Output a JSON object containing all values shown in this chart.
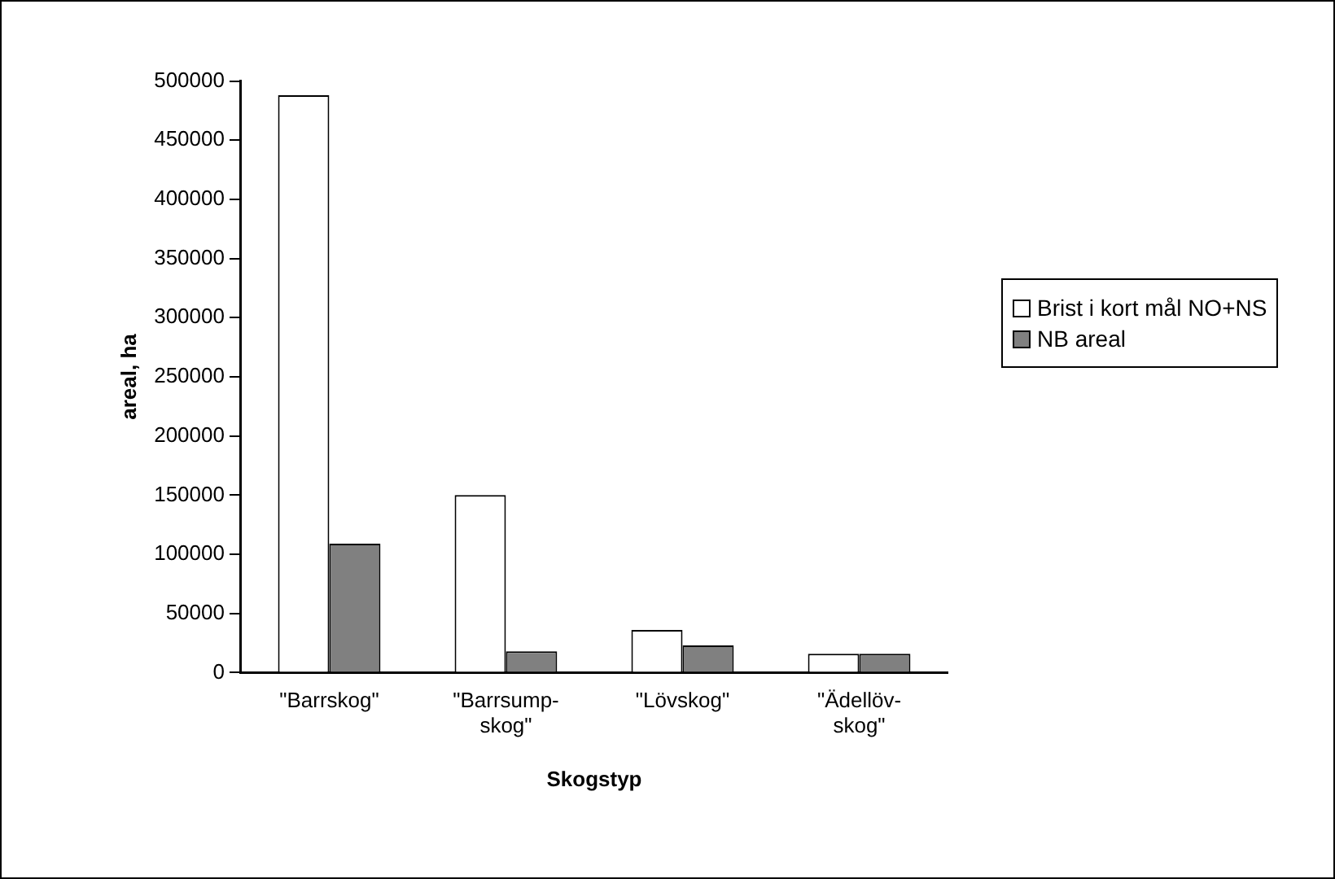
{
  "chart_data": {
    "type": "bar",
    "xlabel": "Skogstyp",
    "ylabel": "areal, ha",
    "categories": [
      "\"Barrskog\"",
      "\"Barrsump-\nskog\"",
      "\"Lövskog\"",
      "\"Ädellöv-\nskog\""
    ],
    "series": [
      {
        "name": "Brist i kort mål NO+NS",
        "color": "#ffffff",
        "values": [
          488000,
          150000,
          36000,
          16000
        ]
      },
      {
        "name": "NB areal",
        "color": "#808080",
        "values": [
          109000,
          18000,
          23000,
          16000
        ]
      }
    ],
    "ylim": [
      0,
      500000
    ],
    "yticks": [
      0,
      50000,
      100000,
      150000,
      200000,
      250000,
      300000,
      350000,
      400000,
      450000,
      500000
    ],
    "grid": false,
    "legend": "right"
  }
}
